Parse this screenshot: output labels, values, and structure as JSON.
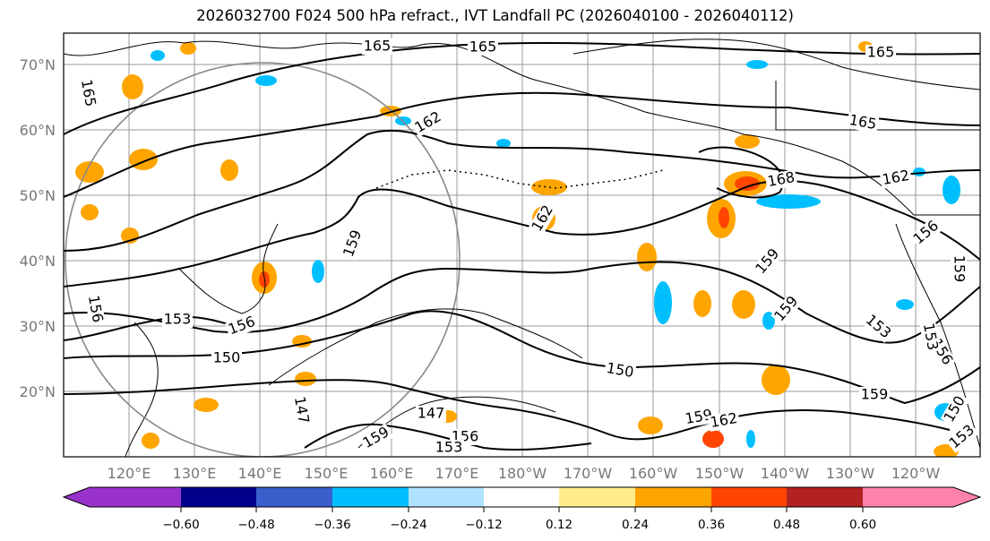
{
  "title": "2026032700 F024 500 hPa refract., IVT Landfall PC (2026040100 - 2026040112)",
  "lat_labels": [
    "70°N",
    "60°N",
    "50°N",
    "40°N",
    "30°N",
    "20°N"
  ],
  "lon_labels": [
    "120°E",
    "130°E",
    "140°E",
    "150°E",
    "160°E",
    "170°E",
    "180°W",
    "170°W",
    "160°W",
    "150°W",
    "140°W",
    "130°W",
    "120°W"
  ],
  "contour_labels": [
    "165",
    "165",
    "165",
    "165",
    "165",
    "162",
    "162",
    "168",
    "162",
    "159",
    "159",
    "159",
    "156",
    "156",
    "159",
    "153",
    "156",
    "156",
    "150",
    "150",
    "147",
    "147",
    "159",
    "156",
    "159",
    "162",
    "159",
    "153",
    "153",
    "153",
    "150",
    "153"
  ],
  "colorbar": {
    "ticks": [
      "−0.60",
      "−0.48",
      "−0.36",
      "−0.24",
      "−0.12",
      "0.12",
      "0.24",
      "0.36",
      "0.48",
      "0.60"
    ],
    "colors": [
      "#9932cc",
      "#00008b",
      "#3a5fcd",
      "#00bfff",
      "#b0e2ff",
      "#ffffff",
      "#ffec8b",
      "#ffa500",
      "#ff4500",
      "#b22222",
      "#ff82ab"
    ]
  },
  "map": {
    "lat_range": [
      10,
      75
    ],
    "lon_range": [
      112,
      248
    ],
    "grid": true,
    "shading": {
      "positive": [
        "#ffec8b",
        "#ffa500",
        "#ff4500"
      ],
      "negative": [
        "#b0e2ff",
        "#00bfff",
        "#3a5fcd"
      ]
    }
  }
}
